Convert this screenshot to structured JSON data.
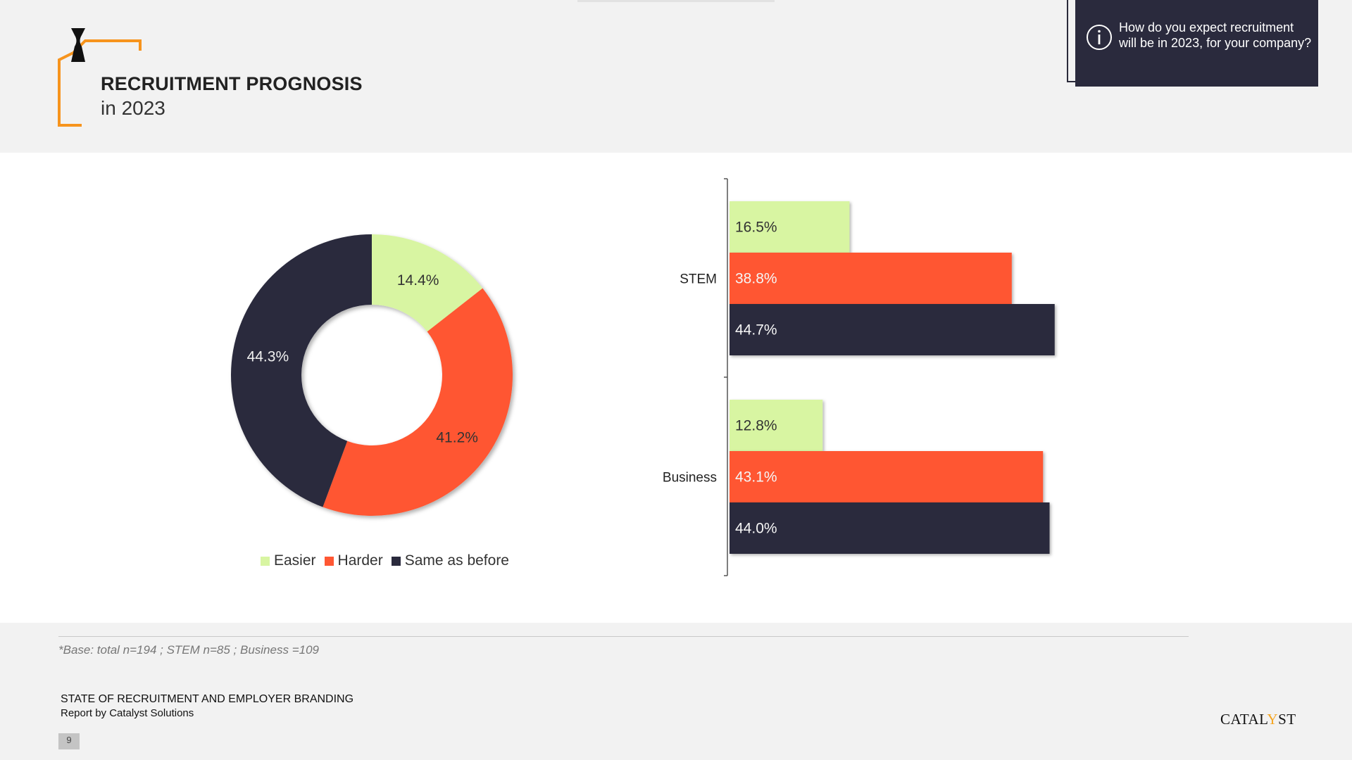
{
  "header": {
    "title": "RECRUITMENT PROGNOSIS",
    "subtitle": "in 2023"
  },
  "question_box": {
    "text": "How do you expect recruitment will be in 2023, for your company?",
    "icon": "info-icon"
  },
  "colors": {
    "easier": "#d8f5a2",
    "harder": "#ff5733",
    "same": "#2a2a3d",
    "bracket_accent": "#f7941d"
  },
  "chart_data": [
    {
      "type": "pie",
      "variant": "donut",
      "categories": [
        "Easier",
        "Harder",
        "Same as before"
      ],
      "values": [
        14.4,
        41.2,
        44.3
      ],
      "labels": [
        "14.4%",
        "41.2%",
        "44.3%"
      ],
      "legend": [
        "Easier",
        "Harder",
        "Same as before"
      ],
      "legend_position": "bottom"
    },
    {
      "type": "bar",
      "orientation": "horizontal",
      "categories": [
        "STEM",
        "Business"
      ],
      "series": [
        {
          "name": "Easier",
          "values": [
            16.5,
            12.8
          ],
          "labels": [
            "16.5%",
            "12.8%"
          ]
        },
        {
          "name": "Harder",
          "values": [
            38.8,
            43.1
          ],
          "labels": [
            "38.8%",
            "43.1%"
          ]
        },
        {
          "name": "Same as before",
          "values": [
            44.7,
            44.0
          ],
          "labels": [
            "44.7%",
            "44.0%"
          ]
        }
      ],
      "xlim": [
        0,
        50
      ]
    }
  ],
  "footer": {
    "footnote": "*Base: total n=194 ; STEM n=85 ; Business =109",
    "report_title": "STATE OF RECRUITMENT AND EMPLOYER BRANDING",
    "report_subtitle": "Report by Catalyst Solutions",
    "page_number": "9",
    "logo_prefix": "CATAL",
    "logo_accent": "Y",
    "logo_suffix": "ST"
  }
}
